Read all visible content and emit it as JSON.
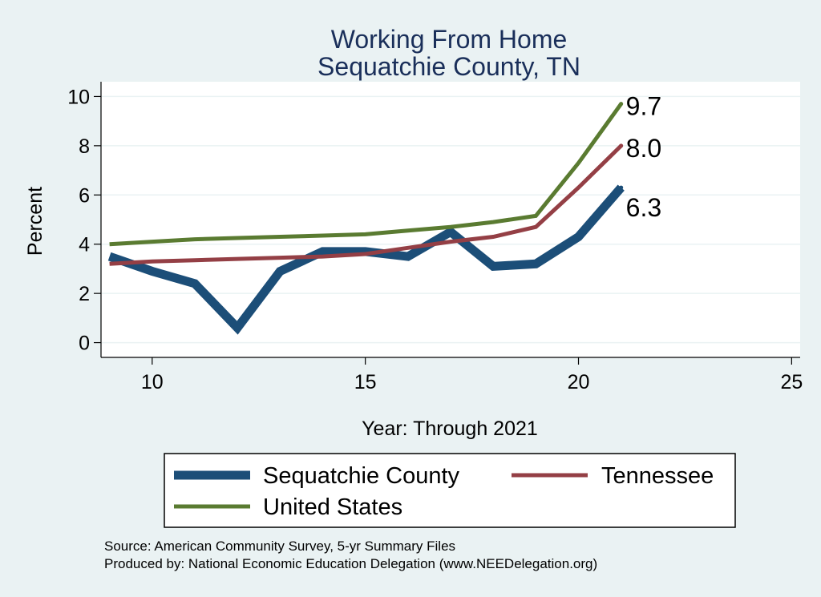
{
  "chart_data": {
    "type": "line",
    "title": [
      "Working From Home",
      "Sequatchie County, TN"
    ],
    "xlabel": "Year: Through 2021",
    "ylabel": "Percent",
    "xlim": [
      8.8,
      25.2
    ],
    "ylim": [
      -0.6,
      10.6
    ],
    "xticks": [
      10,
      15,
      20,
      25
    ],
    "yticks": [
      0,
      2,
      4,
      6,
      8,
      10
    ],
    "grid": true,
    "legend_position": "bottom",
    "series": [
      {
        "name": "Sequatchie County",
        "color": "#1c4e78",
        "x": [
          9,
          10,
          11,
          12,
          13,
          14,
          15,
          16,
          17,
          18,
          19,
          20,
          21
        ],
        "y": [
          3.5,
          2.9,
          2.4,
          0.6,
          2.9,
          3.7,
          3.7,
          3.5,
          4.5,
          3.1,
          3.2,
          4.3,
          6.3
        ],
        "end_label": "6.3"
      },
      {
        "name": "Tennessee",
        "color": "#943f45",
        "x": [
          9,
          10,
          11,
          12,
          13,
          14,
          15,
          16,
          17,
          18,
          19,
          20,
          21
        ],
        "y": [
          3.2,
          3.3,
          3.35,
          3.4,
          3.45,
          3.5,
          3.6,
          3.85,
          4.1,
          4.3,
          4.7,
          6.3,
          8.0
        ],
        "end_label": "8.0"
      },
      {
        "name": "United States",
        "color": "#5a7b31",
        "x": [
          9,
          10,
          11,
          12,
          13,
          14,
          15,
          16,
          17,
          18,
          19,
          20,
          21
        ],
        "y": [
          4.0,
          4.1,
          4.2,
          4.25,
          4.3,
          4.35,
          4.4,
          4.55,
          4.7,
          4.9,
          5.15,
          7.3,
          9.7
        ],
        "end_label": "9.7"
      }
    ],
    "source_notes": [
      "Source: American Community Survey, 5-yr Summary Files",
      "Produced by: National Economic Education Delegation (www.NEEDelegation.org)"
    ]
  }
}
